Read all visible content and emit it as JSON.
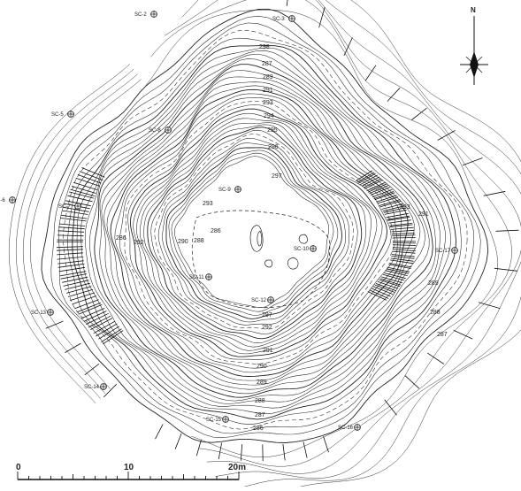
{
  "map": {
    "north_label": "N",
    "scale": {
      "ticks": [
        "0",
        "10",
        "20m"
      ]
    },
    "elevation_labels": [
      "298",
      "287",
      "289",
      "291",
      "293",
      "294",
      "295",
      "296",
      "297",
      "297",
      "292",
      "291",
      "290",
      "289",
      "288",
      "287",
      "286",
      "293",
      "291",
      "289",
      "288",
      "287",
      "286",
      "292",
      "290",
      "288",
      "293",
      "286"
    ],
    "stations": [
      "SC-2",
      "SC-3",
      "SC-5",
      "SC-6",
      "SC-7",
      "SC-8",
      "SC-9",
      "SC-10",
      "SC-11",
      "SC-12",
      "SC-13",
      "SC-14",
      "SC-15",
      "SC-16",
      "SC-17"
    ]
  }
}
